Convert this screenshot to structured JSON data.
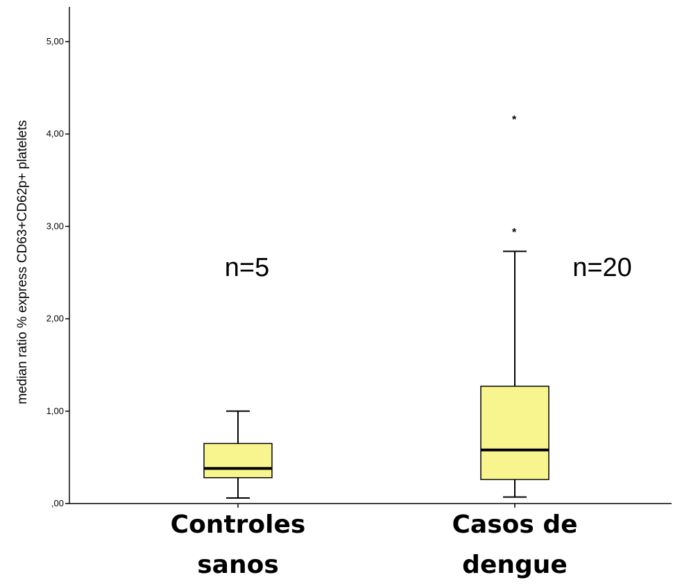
{
  "chart_data": {
    "type": "boxplot",
    "title": "",
    "xlabel": "",
    "ylabel": "median ratio % express CD63+CD62p+ platelets",
    "ylim": [
      0,
      5.5
    ],
    "yticks": [
      0,
      1,
      2,
      3,
      4,
      5
    ],
    "ytick_labels": [
      ",00",
      "1,00",
      "2,00",
      "3,00",
      "4,00",
      "5,00"
    ],
    "grid": false,
    "categories": [
      {
        "line1": "Controles",
        "line2": "sanos"
      },
      {
        "line1": "Casos de",
        "line2": "dengue"
      }
    ],
    "groups": [
      {
        "min": 0.06,
        "q1": 0.28,
        "median": 0.38,
        "q3": 0.65,
        "max": 1.0,
        "outliers": [],
        "n_label": "n=5"
      },
      {
        "min": 0.07,
        "q1": 0.26,
        "median": 0.58,
        "q3": 1.27,
        "max": 2.73,
        "outliers": [
          2.95,
          4.17
        ],
        "n_label": "n=20"
      }
    ],
    "box_fill": "#f8f58f",
    "outlier_marker": "*"
  }
}
